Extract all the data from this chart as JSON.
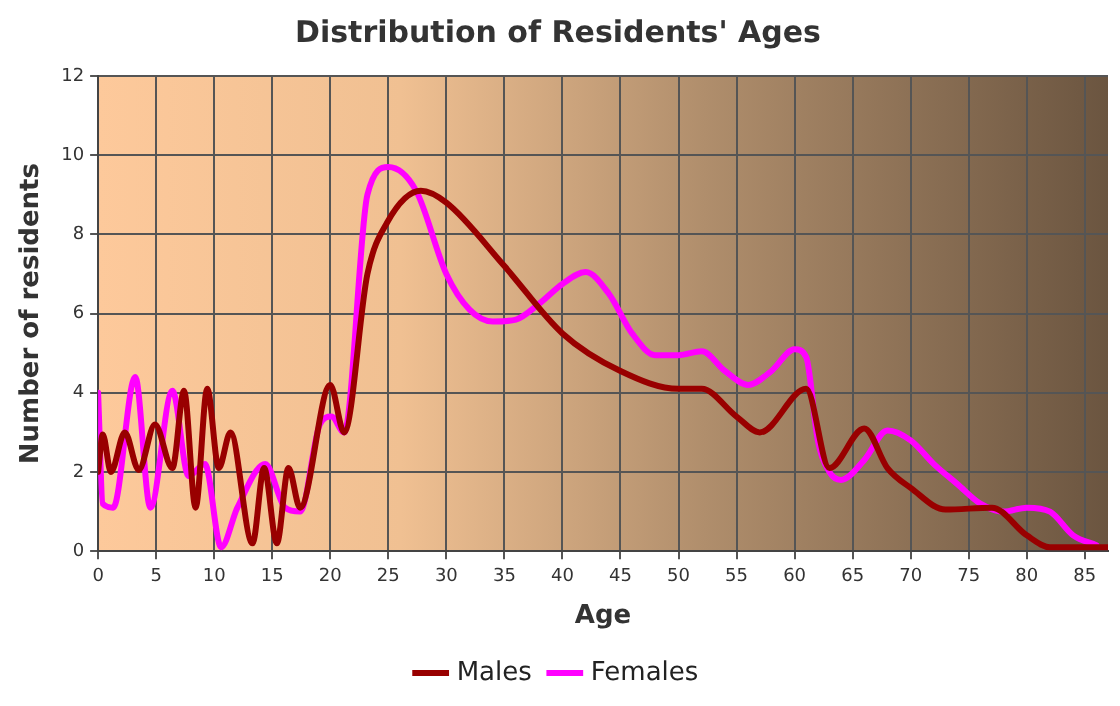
{
  "chart_data": {
    "type": "line",
    "title": "Distribution of Residents' Ages",
    "xlabel": "Age",
    "ylabel": "Number of residents",
    "xlim": [
      0,
      87
    ],
    "xticks": [
      0,
      5,
      10,
      15,
      20,
      25,
      30,
      35,
      40,
      45,
      50,
      55,
      60,
      65,
      70,
      75,
      80,
      85
    ],
    "ylim": [
      0,
      12
    ],
    "yticks": [
      0,
      2,
      4,
      6,
      8,
      10,
      12
    ],
    "grid": true,
    "legend": "bottom",
    "marker": "none",
    "line_style": "solid",
    "series": [
      {
        "name": "Males",
        "color": "#990000",
        "x": [
          0,
          0.4,
          1.1,
          2.3,
          3.5,
          4.9,
          6.4,
          7.4,
          8.4,
          9.4,
          10.4,
          11.4,
          13.3,
          14.3,
          15.4,
          16.4,
          17.4,
          20,
          21.2,
          23.2,
          24.9,
          27.8,
          30,
          35,
          40,
          45,
          50,
          52,
          55,
          57,
          61,
          63,
          66,
          68,
          70,
          73,
          77,
          80,
          82,
          87
        ],
        "values": [
          2.0,
          2.95,
          2.0,
          3.0,
          2.05,
          3.2,
          2.1,
          4.05,
          1.1,
          4.1,
          2.1,
          3.0,
          0.2,
          2.1,
          0.2,
          2.1,
          1.1,
          4.2,
          3.0,
          7.0,
          8.3,
          9.1,
          8.8,
          7.2,
          5.5,
          4.55,
          4.1,
          4.1,
          3.4,
          3.0,
          4.1,
          2.1,
          3.1,
          2.1,
          1.6,
          1.05,
          1.1,
          0.4,
          0.1,
          0.1
        ]
      },
      {
        "name": "Females",
        "color": "#ff00ff",
        "x": [
          0,
          0.4,
          1.3,
          3.2,
          4.5,
          6.4,
          7.8,
          9.2,
          10.6,
          12,
          14.4,
          16.1,
          17.4,
          19.1,
          20.1,
          21.2,
          23.2,
          25,
          27.4,
          30,
          32,
          34,
          36,
          38,
          40,
          42,
          44,
          46,
          48,
          50,
          52,
          54,
          56,
          58,
          60,
          61,
          62,
          63,
          64,
          66,
          68,
          70,
          72,
          74,
          76,
          78,
          80,
          82,
          84,
          86
        ],
        "values": [
          4.0,
          1.2,
          1.1,
          4.4,
          1.1,
          4.05,
          1.9,
          2.2,
          0.1,
          1.1,
          2.2,
          1.1,
          1.0,
          3.2,
          3.4,
          3.0,
          9.0,
          9.7,
          9.1,
          7.0,
          6.1,
          5.8,
          5.85,
          6.25,
          6.75,
          7.05,
          6.5,
          5.5,
          4.95,
          4.95,
          5.05,
          4.55,
          4.2,
          4.55,
          5.1,
          4.9,
          2.8,
          2.0,
          1.8,
          2.3,
          3.05,
          2.8,
          2.2,
          1.7,
          1.2,
          1.0,
          1.1,
          1.0,
          0.4,
          0.15
        ]
      }
    ]
  }
}
